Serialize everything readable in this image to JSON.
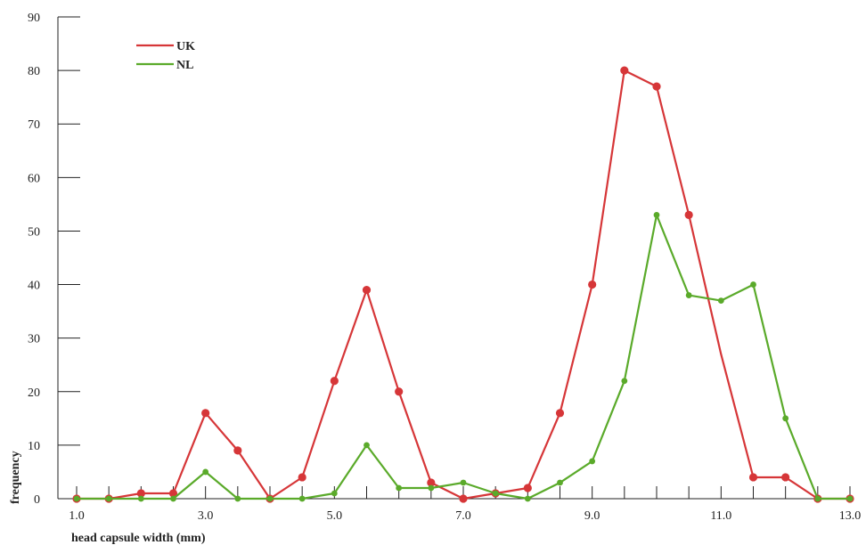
{
  "chart_data": {
    "type": "line",
    "title": "",
    "xlabel": "head capsule width (mm)",
    "ylabel": "frequency",
    "xlim": [
      1.0,
      13.0
    ],
    "ylim": [
      0,
      90
    ],
    "x_ticks": [
      1.0,
      1.5,
      2.0,
      2.5,
      3.0,
      3.5,
      4.0,
      4.5,
      5.0,
      5.5,
      6.0,
      6.5,
      7.0,
      7.5,
      8.0,
      8.5,
      9.0,
      9.5,
      10.0,
      10.5,
      11.0,
      11.5,
      12.0,
      12.5,
      13.0
    ],
    "x_tick_labels": [
      "1.0",
      "3.0",
      "5.0",
      "7.0",
      "9.0",
      "11.0",
      "13.0"
    ],
    "x_tick_label_values": [
      1.0,
      3.0,
      5.0,
      7.0,
      9.0,
      11.0,
      13.0
    ],
    "y_ticks": [
      0,
      10,
      20,
      30,
      40,
      50,
      60,
      70,
      80,
      90
    ],
    "y_tick_labels": [
      "0",
      "10",
      "20",
      "30",
      "40",
      "50",
      "60",
      "70",
      "80",
      "90"
    ],
    "grid": false,
    "legend_placement": "top-left",
    "series": [
      {
        "name": "UK",
        "color": "#d63638",
        "marker": "circle",
        "marker_size": "large",
        "points": [
          [
            1.0,
            0
          ],
          [
            1.5,
            0
          ],
          [
            2.0,
            1
          ],
          [
            2.5,
            1
          ],
          [
            3.0,
            16
          ],
          [
            3.5,
            9
          ],
          [
            4.0,
            0
          ],
          [
            4.5,
            4
          ],
          [
            5.0,
            22
          ],
          [
            5.5,
            39
          ],
          [
            6.0,
            20
          ],
          [
            6.5,
            3
          ],
          [
            7.0,
            0
          ],
          [
            7.5,
            1
          ],
          [
            8.0,
            2
          ],
          [
            8.5,
            16
          ],
          [
            9.0,
            40
          ],
          [
            9.5,
            80
          ],
          [
            10.0,
            77
          ],
          [
            10.5,
            53
          ],
          [
            11.0,
            27
          ],
          [
            11.5,
            4
          ],
          [
            12.0,
            4
          ],
          [
            12.5,
            0
          ],
          [
            13.0,
            0
          ]
        ],
        "markers_at": [
          1.0,
          1.5,
          2.0,
          2.5,
          3.0,
          3.5,
          4.0,
          4.5,
          5.0,
          5.5,
          6.0,
          6.5,
          7.0,
          7.5,
          8.0,
          8.5,
          9.0,
          9.5,
          10.0,
          10.5,
          11.5,
          12.0,
          12.5,
          13.0
        ]
      },
      {
        "name": "NL",
        "color": "#5aaa2a",
        "marker": "circle",
        "marker_size": "small",
        "points": [
          [
            1.0,
            0
          ],
          [
            1.5,
            0
          ],
          [
            2.0,
            0
          ],
          [
            2.5,
            0
          ],
          [
            3.0,
            5
          ],
          [
            3.5,
            0
          ],
          [
            4.0,
            0
          ],
          [
            4.5,
            0
          ],
          [
            5.0,
            1
          ],
          [
            5.5,
            10
          ],
          [
            6.0,
            2
          ],
          [
            6.5,
            2
          ],
          [
            7.0,
            3
          ],
          [
            7.5,
            1
          ],
          [
            8.0,
            0
          ],
          [
            8.5,
            3
          ],
          [
            9.0,
            7
          ],
          [
            9.5,
            22
          ],
          [
            10.0,
            53
          ],
          [
            10.5,
            38
          ],
          [
            11.0,
            37
          ],
          [
            11.5,
            40
          ],
          [
            12.0,
            15
          ],
          [
            12.5,
            0
          ],
          [
            13.0,
            0
          ]
        ],
        "markers_at": [
          1.0,
          1.5,
          2.0,
          2.5,
          3.0,
          3.5,
          4.0,
          4.5,
          5.0,
          5.5,
          6.0,
          6.5,
          7.0,
          7.5,
          8.0,
          8.5,
          9.0,
          9.5,
          10.0,
          10.5,
          11.0,
          11.5,
          12.0,
          12.5,
          13.0
        ]
      }
    ]
  }
}
